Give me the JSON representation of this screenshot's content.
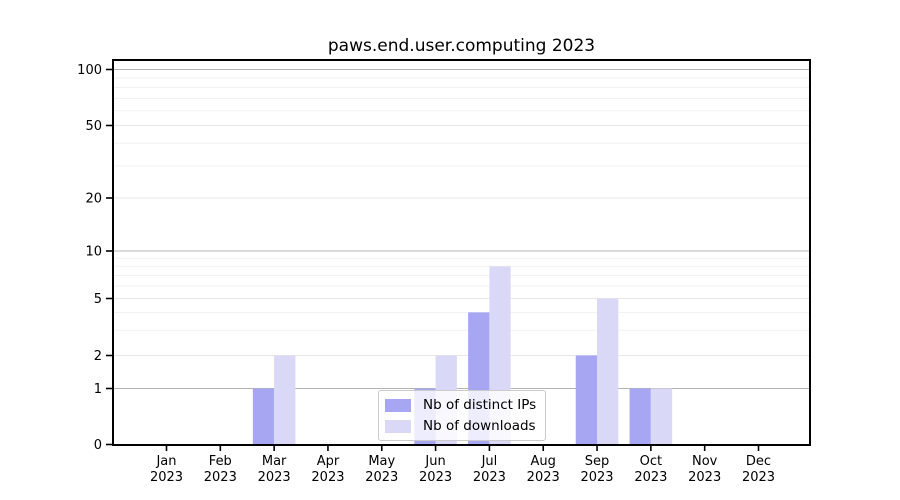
{
  "chart_data": {
    "type": "bar",
    "title": "paws.end.user.computing 2023",
    "categories": [
      [
        "Jan",
        "2023"
      ],
      [
        "Feb",
        "2023"
      ],
      [
        "Mar",
        "2023"
      ],
      [
        "Apr",
        "2023"
      ],
      [
        "May",
        "2023"
      ],
      [
        "Jun",
        "2023"
      ],
      [
        "Jul",
        "2023"
      ],
      [
        "Aug",
        "2023"
      ],
      [
        "Sep",
        "2023"
      ],
      [
        "Oct",
        "2023"
      ],
      [
        "Nov",
        "2023"
      ],
      [
        "Dec",
        "2023"
      ]
    ],
    "series": [
      {
        "name": "Nb of distinct IPs",
        "color": "#a6a6f2",
        "values": [
          0,
          0,
          1,
          0,
          0,
          1,
          4,
          0,
          2,
          1,
          0,
          0
        ]
      },
      {
        "name": "Nb of downloads",
        "color": "#d9d9f7",
        "values": [
          0,
          0,
          2,
          0,
          0,
          2,
          8,
          0,
          5,
          1,
          0,
          0
        ]
      }
    ],
    "xlabel": "",
    "ylabel": "",
    "yscale": "log (zero shown at axis baseline)",
    "yticks": [
      0,
      1,
      2,
      5,
      10,
      20,
      50,
      100
    ],
    "ylim": [
      0,
      140
    ],
    "grid": true,
    "legend_position": "lower center",
    "colors": {
      "grid_major": "#b3b3b3",
      "grid_mid": "#e7e7e7",
      "grid_minor": "#f1f1f1",
      "axis": "#000000",
      "background": "#ffffff"
    }
  }
}
